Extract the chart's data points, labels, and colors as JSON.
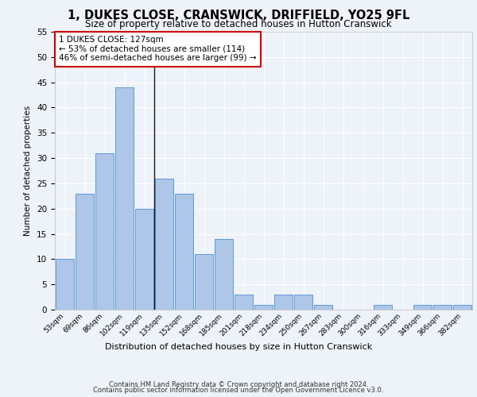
{
  "title_line1": "1, DUKES CLOSE, CRANSWICK, DRIFFIELD, YO25 9FL",
  "title_line2": "Size of property relative to detached houses in Hutton Cranswick",
  "xlabel": "Distribution of detached houses by size in Hutton Cranswick",
  "ylabel": "Number of detached properties",
  "bar_labels": [
    "53sqm",
    "69sqm",
    "86sqm",
    "102sqm",
    "119sqm",
    "135sqm",
    "152sqm",
    "168sqm",
    "185sqm",
    "201sqm",
    "218sqm",
    "234sqm",
    "250sqm",
    "267sqm",
    "283sqm",
    "300sqm",
    "316sqm",
    "333sqm",
    "349sqm",
    "366sqm",
    "382sqm"
  ],
  "bar_values": [
    10,
    23,
    31,
    44,
    20,
    26,
    23,
    11,
    14,
    3,
    1,
    3,
    3,
    1,
    0,
    0,
    1,
    0,
    1,
    1,
    1
  ],
  "bar_color": "#aec6e8",
  "bar_edge_color": "#5b9bd5",
  "annotation_text": "1 DUKES CLOSE: 127sqm\n← 53% of detached houses are smaller (114)\n46% of semi-detached houses are larger (99) →",
  "annotation_box_color": "#ffffff",
  "annotation_box_edge_color": "#cc0000",
  "vline_color": "#1a1a1a",
  "ylim": [
    0,
    55
  ],
  "yticks": [
    0,
    5,
    10,
    15,
    20,
    25,
    30,
    35,
    40,
    45,
    50,
    55
  ],
  "footer_line1": "Contains HM Land Registry data © Crown copyright and database right 2024.",
  "footer_line2": "Contains public sector information licensed under the Open Government Licence v3.0.",
  "bg_color": "#eef2f9",
  "plot_bg_color": "#eef2f9",
  "grid_color": "#ffffff"
}
